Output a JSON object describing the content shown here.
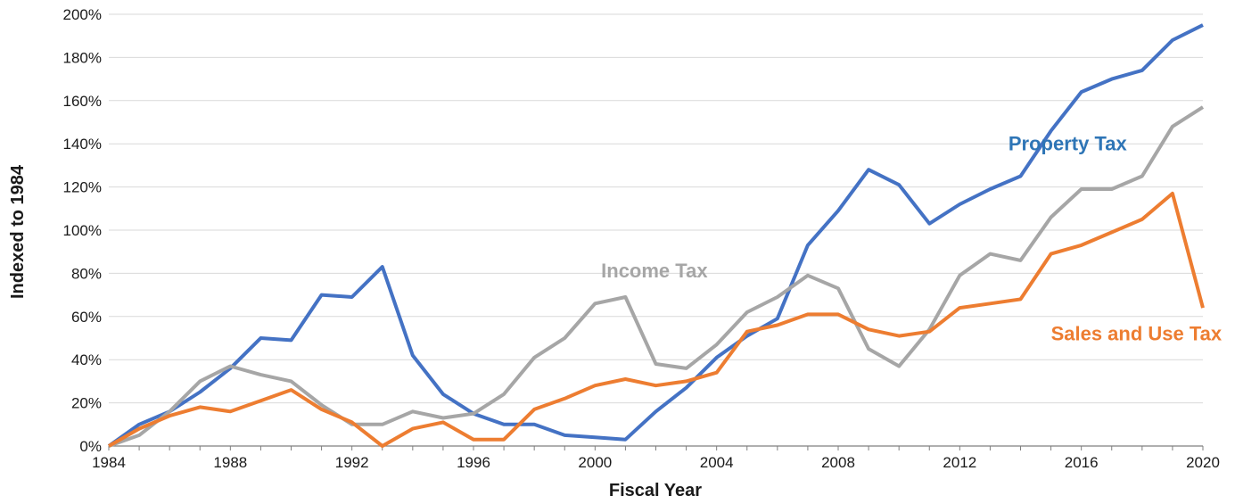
{
  "chart_data": {
    "type": "line",
    "title": "",
    "xlabel": "Fiscal Year",
    "ylabel": "Indexed to 1984",
    "xlim": [
      1984,
      2020
    ],
    "ylim": [
      0,
      200
    ],
    "x_ticks": [
      1984,
      1988,
      1992,
      1996,
      2000,
      2004,
      2008,
      2012,
      2016,
      2020
    ],
    "y_ticks": [
      0,
      20,
      40,
      60,
      80,
      100,
      120,
      140,
      160,
      180,
      200
    ],
    "y_tick_suffix": "%",
    "grid": "horizontal",
    "x": [
      1984,
      1985,
      1986,
      1987,
      1988,
      1989,
      1990,
      1991,
      1992,
      1993,
      1994,
      1995,
      1996,
      1997,
      1998,
      1999,
      2000,
      2001,
      2002,
      2003,
      2004,
      2005,
      2006,
      2007,
      2008,
      2009,
      2010,
      2011,
      2012,
      2013,
      2014,
      2015,
      2016,
      2017,
      2018,
      2019,
      2020
    ],
    "series": [
      {
        "name": "Property Tax",
        "color": "#4472c4",
        "label_year": 2013.6,
        "label_value": 137,
        "values": [
          0,
          10,
          16,
          25,
          36,
          50,
          49,
          70,
          69,
          83,
          42,
          24,
          15,
          10,
          10,
          5,
          4,
          3,
          16,
          27,
          41,
          51,
          59,
          93,
          109,
          128,
          121,
          103,
          112,
          119,
          125,
          146,
          164,
          170,
          174,
          188,
          195
        ]
      },
      {
        "name": "Income Tax",
        "color": "#a6a6a6",
        "label_year": 2000.2,
        "label_value": 78,
        "values": [
          0,
          5,
          16,
          30,
          37,
          33,
          30,
          19,
          10,
          10,
          16,
          13,
          15,
          24,
          41,
          50,
          66,
          69,
          38,
          36,
          47,
          62,
          69,
          79,
          73,
          45,
          37,
          54,
          79,
          89,
          86,
          106,
          119,
          119,
          125,
          148,
          157
        ]
      },
      {
        "name": "Sales and Use Tax",
        "color": "#ed7d31",
        "label_year": 2015.0,
        "label_value": 49,
        "values": [
          0,
          8,
          14,
          18,
          16,
          21,
          26,
          17,
          11,
          0,
          8,
          11,
          3,
          3,
          17,
          22,
          28,
          31,
          28,
          30,
          34,
          53,
          56,
          61,
          61,
          54,
          51,
          53,
          64,
          66,
          68,
          89,
          93,
          99,
          105,
          117,
          64
        ]
      }
    ]
  }
}
